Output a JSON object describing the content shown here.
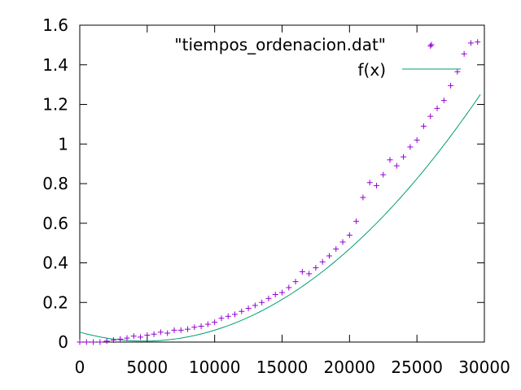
{
  "chart_data": {
    "type": "scatter",
    "title": "",
    "xlabel": "",
    "ylabel": "",
    "xlim": [
      0,
      30000
    ],
    "ylim": [
      0,
      1.6
    ],
    "x_ticks": [
      "0",
      "5000",
      "10000",
      "15000",
      "20000",
      "25000",
      "30000"
    ],
    "y_ticks": [
      "0",
      "0.2",
      "0.4",
      "0.6",
      "0.8",
      "1",
      "1.2",
      "1.4",
      "1.6"
    ],
    "legend_position": "top-right",
    "grid": false,
    "series": [
      {
        "name": "\"tiempos_ordenacion.dat\"",
        "kind": "points",
        "marker": "plus",
        "color": "#9400d3",
        "points": [
          [
            0,
            0.0
          ],
          [
            500,
            0.0
          ],
          [
            1000,
            0.0
          ],
          [
            1500,
            0.0
          ],
          [
            2000,
            0.005
          ],
          [
            2500,
            0.01
          ],
          [
            3000,
            0.015
          ],
          [
            3500,
            0.02
          ],
          [
            4000,
            0.03
          ],
          [
            4500,
            0.025
          ],
          [
            5000,
            0.035
          ],
          [
            5500,
            0.04
          ],
          [
            6000,
            0.05
          ],
          [
            6500,
            0.045
          ],
          [
            7000,
            0.06
          ],
          [
            7500,
            0.06
          ],
          [
            8000,
            0.065
          ],
          [
            8500,
            0.075
          ],
          [
            9000,
            0.08
          ],
          [
            9500,
            0.09
          ],
          [
            10000,
            0.1
          ],
          [
            10500,
            0.12
          ],
          [
            11000,
            0.13
          ],
          [
            11500,
            0.14
          ],
          [
            12000,
            0.155
          ],
          [
            12500,
            0.17
          ],
          [
            13000,
            0.185
          ],
          [
            13500,
            0.2
          ],
          [
            14000,
            0.22
          ],
          [
            14500,
            0.24
          ],
          [
            15000,
            0.25
          ],
          [
            15500,
            0.275
          ],
          [
            16000,
            0.305
          ],
          [
            16500,
            0.355
          ],
          [
            17000,
            0.345
          ],
          [
            17500,
            0.375
          ],
          [
            18000,
            0.405
          ],
          [
            18500,
            0.435
          ],
          [
            19000,
            0.47
          ],
          [
            19500,
            0.505
          ],
          [
            20000,
            0.54
          ],
          [
            20500,
            0.61
          ],
          [
            21000,
            0.73
          ],
          [
            21500,
            0.805
          ],
          [
            22000,
            0.79
          ],
          [
            22500,
            0.845
          ],
          [
            23000,
            0.92
          ],
          [
            23500,
            0.89
          ],
          [
            24000,
            0.935
          ],
          [
            24500,
            0.985
          ],
          [
            25000,
            1.02
          ],
          [
            25500,
            1.09
          ],
          [
            26000,
            1.14
          ],
          [
            26500,
            1.18
          ],
          [
            27000,
            1.22
          ],
          [
            27500,
            1.295
          ],
          [
            28000,
            1.365
          ],
          [
            28500,
            1.455
          ],
          [
            29000,
            1.51
          ],
          [
            29500,
            1.515
          ],
          [
            26000,
            1.495
          ]
        ]
      },
      {
        "name": "f(x)",
        "kind": "line",
        "color": "#009e73",
        "coefficients": {
          "a": 2e-09,
          "b": -1.9e-05,
          "c": 0.05
        },
        "x_range": [
          0,
          29700
        ]
      }
    ]
  }
}
